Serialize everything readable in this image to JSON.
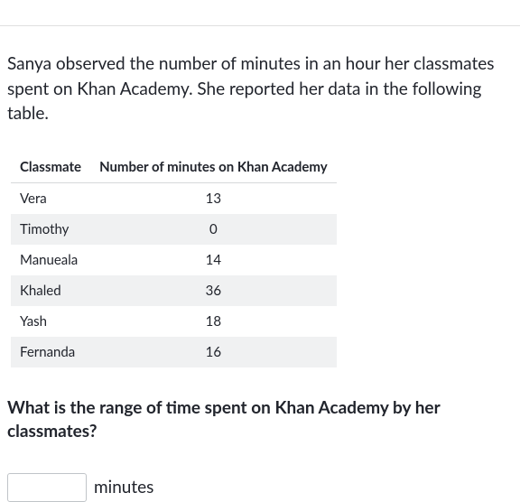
{
  "intro_text": "Sanya observed the number of minutes in an hour her classmates spent on Khan Academy. She reported her data in the following table.",
  "table": {
    "columns": [
      "Classmate",
      "Number of minutes on Khan Academy"
    ],
    "rows": [
      [
        "Vera",
        "13"
      ],
      [
        "Timothy",
        "0"
      ],
      [
        "Manueala",
        "14"
      ],
      [
        "Khaled",
        "36"
      ],
      [
        "Yash",
        "18"
      ],
      [
        "Fernanda",
        "16"
      ]
    ],
    "header_border_color": "#d6d8da",
    "stripe_color": "#f0f1f2",
    "font_size": 15
  },
  "question_text": "What is the range of time spent on Khan Academy by her classmates?",
  "answer": {
    "value": "",
    "unit_label": "minutes"
  },
  "colors": {
    "text": "#21242c",
    "divider": "#e0e0e0",
    "input_border": "#c0c4c8",
    "background": "#ffffff"
  }
}
